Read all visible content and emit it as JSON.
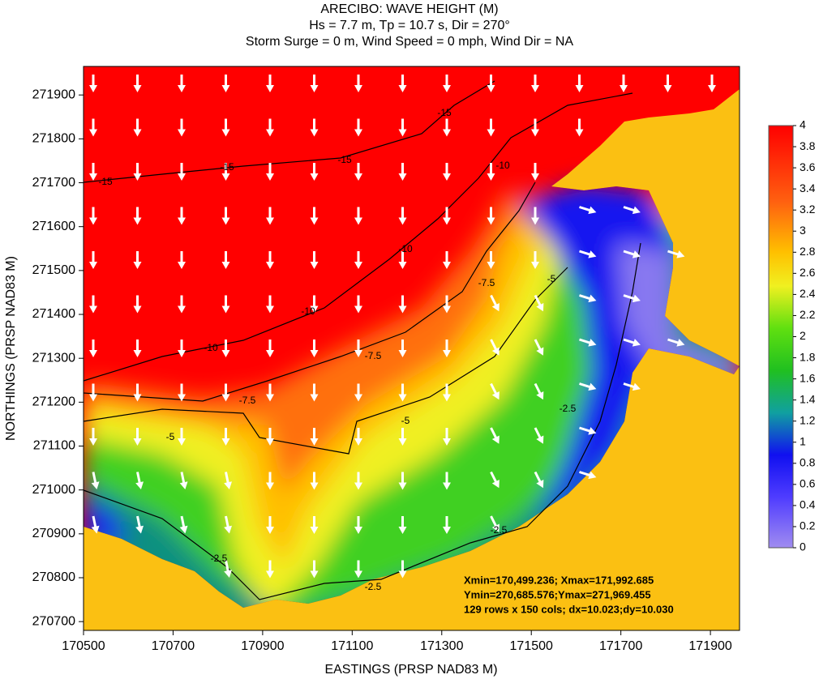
{
  "chart_data": {
    "type": "contour",
    "title": "ARECIBO: WAVE HEIGHT (M)",
    "subtitle": [
      "Hs = 7.7 m, Tp = 10.7 s, Dir = 270°",
      "Storm Surge = 0 m, Wind Speed = 0 mph, Wind Dir = NA"
    ],
    "x_label": "EASTINGS (PRSP NAD83 M)",
    "y_label": "NORTHINGS (PRSP NAD83 M)",
    "xlim": [
      170500,
      171965
    ],
    "ylim": [
      270680,
      271965
    ],
    "xticks": [
      170500,
      170700,
      170900,
      171100,
      171300,
      171500,
      171700,
      171900
    ],
    "yticks": [
      270700,
      270800,
      270900,
      271000,
      271100,
      271200,
      271300,
      271400,
      271500,
      271600,
      271700,
      271800,
      271900
    ],
    "colorbar": {
      "lim": [
        0,
        4
      ],
      "ticks": [
        0,
        0.2,
        0.4,
        0.6,
        0.8,
        1,
        1.2,
        1.4,
        1.6,
        1.8,
        2,
        2.2,
        2.4,
        2.6,
        2.8,
        3,
        3.2,
        3.4,
        3.6,
        3.8,
        4
      ]
    },
    "contour_labels": [
      -15,
      -15,
      -15,
      -15,
      -10,
      -10,
      -10,
      -10,
      -7.5,
      -7.5,
      -7.5,
      -5,
      -5,
      -5,
      -2.5,
      -2.5,
      -2.5,
      -2.5
    ],
    "annotations": [
      "Xmin=170,499.236; Xmax=171,992.685",
      "Ymin=270,685.576;Ymax=271,969.455",
      "129 rows x 150 cols; dx=10.023;dy=10.030"
    ]
  }
}
